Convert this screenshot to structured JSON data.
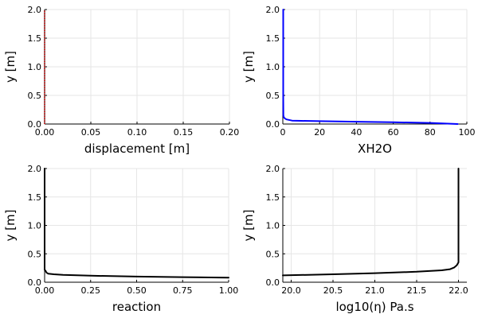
{
  "chart_data": [
    {
      "type": "line",
      "xlabel": "displacement [m]",
      "ylabel": "y [m]",
      "xlim": [
        0,
        0.2
      ],
      "ylim": [
        0,
        2
      ],
      "xticks": [
        "0.00",
        "0.05",
        "0.10",
        "0.15",
        "0.20"
      ],
      "yticks": [
        "0.0",
        "0.5",
        "1.0",
        "1.5",
        "2.0"
      ],
      "grid": true,
      "series": [
        {
          "color": "#d62728",
          "style": "dotted",
          "x": [
            0,
            0,
            0,
            0,
            0,
            0,
            0,
            0,
            0
          ],
          "y": [
            0,
            0.25,
            0.5,
            0.75,
            1.0,
            1.25,
            1.5,
            1.75,
            2.0
          ]
        }
      ]
    },
    {
      "type": "line",
      "xlabel": "XH2O",
      "ylabel": "y [m]",
      "xlim": [
        0,
        100
      ],
      "ylim": [
        0,
        2
      ],
      "xticks": [
        "0",
        "20",
        "40",
        "60",
        "80",
        "100"
      ],
      "yticks": [
        "0.0",
        "0.5",
        "1.0",
        "1.5",
        "2.0"
      ],
      "grid": true,
      "series": [
        {
          "color": "#0000ff",
          "style": "solid",
          "x": [
            95,
            80,
            60,
            40,
            20,
            10,
            5,
            2,
            1,
            0.5,
            0.3,
            0.2,
            0.2
          ],
          "y": [
            0.0,
            0.02,
            0.03,
            0.04,
            0.05,
            0.055,
            0.06,
            0.08,
            0.1,
            0.12,
            0.15,
            0.5,
            2.0
          ]
        }
      ]
    },
    {
      "type": "line",
      "xlabel": "reaction",
      "ylabel": "y [m]",
      "xlim": [
        0,
        1
      ],
      "ylim": [
        0,
        2
      ],
      "xticks": [
        "0.00",
        "0.25",
        "0.50",
        "0.75",
        "1.00"
      ],
      "yticks": [
        "0.0",
        "0.5",
        "1.0",
        "1.5",
        "2.0"
      ],
      "grid": true,
      "series": [
        {
          "color": "#000000",
          "style": "solid",
          "x": [
            1.0,
            0.75,
            0.5,
            0.25,
            0.1,
            0.05,
            0.02,
            0.01,
            0.005,
            0.0,
            0.0
          ],
          "y": [
            0.08,
            0.09,
            0.1,
            0.115,
            0.13,
            0.14,
            0.15,
            0.17,
            0.2,
            0.22,
            2.0
          ]
        }
      ]
    },
    {
      "type": "line",
      "xlabel": "log10(η) Pa.s",
      "ylabel": "y [m]",
      "xlim": [
        19.9,
        22.1
      ],
      "ylim": [
        0,
        2
      ],
      "xticks": [
        "20.0",
        "20.5",
        "21.0",
        "21.5",
        "22.0"
      ],
      "xtick_values": [
        20.0,
        20.5,
        21.0,
        21.5,
        22.0
      ],
      "yticks": [
        "0.0",
        "0.5",
        "1.0",
        "1.5",
        "2.0"
      ],
      "grid": true,
      "series": [
        {
          "color": "#000000",
          "style": "solid",
          "x": [
            19.9,
            20.5,
            21.0,
            21.5,
            21.8,
            21.9,
            21.95,
            21.98,
            22.0,
            22.0
          ],
          "y": [
            0.12,
            0.14,
            0.16,
            0.185,
            0.21,
            0.23,
            0.26,
            0.3,
            0.35,
            2.0
          ]
        }
      ]
    }
  ]
}
